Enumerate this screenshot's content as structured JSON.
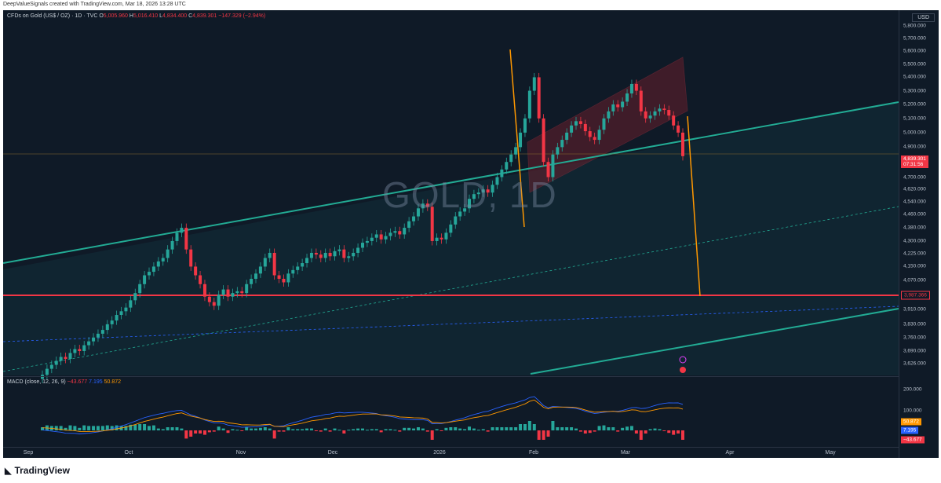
{
  "header": "DeepValueSignals created with TradingView.com, Mar 18, 2026 13:28 UTC",
  "symbol": {
    "name": "CFDs on Gold (US$ / OZ) · 1D · TVC",
    "o_label": "O",
    "o": "5,005.960",
    "h_label": "H",
    "h": "5,016.410",
    "l_label": "L",
    "l": "4,834.400",
    "c_label": "C",
    "c": "4,839.301",
    "change": "−147.329 (−2.94%)"
  },
  "watermark": "GOLD, 1D",
  "currency": "USD",
  "price_tag": {
    "value": "4,839.301",
    "countdown": "07:31:56"
  },
  "level_tag": "3,987.366",
  "macd": {
    "legend": "MACD (close, 12, 26, 9)",
    "histogram": "−43.677",
    "macd_line": "7.195",
    "signal": "50.872",
    "tags": {
      "signal": "50.872",
      "macd": "7.195",
      "hist": "−43.677"
    },
    "ticks": [
      "200.000",
      "100.000"
    ]
  },
  "footer": {
    "logo": "◣",
    "brand": "TradingView"
  },
  "colors": {
    "up": "#26a69a",
    "down": "#f23645",
    "trend": "#22ab94",
    "level": "#f23645",
    "projection": "#ff9800",
    "macd": "#2962ff",
    "signal": "#ff9800"
  },
  "chart_data": {
    "type": "candlestick",
    "title": "CFDs on Gold (US$ / OZ) · 1D · TVC",
    "y_ticks": [
      "5,800.000",
      "5,700.000",
      "5,600.000",
      "5,500.000",
      "5,400.000",
      "5,300.000",
      "5,200.000",
      "5,100.000",
      "5,000.000",
      "4,900.000",
      "4,700.000",
      "4,620.000",
      "4,540.000",
      "4,460.000",
      "4,380.000",
      "4,300.000",
      "4,225.000",
      "4,150.000",
      "4,070.000",
      "3,910.000",
      "3,830.000",
      "3,760.000",
      "3,690.000",
      "3,626.000"
    ],
    "x_ticks": [
      "Sep",
      "Oct",
      "Nov",
      "Dec",
      "2026",
      "Feb",
      "Mar",
      "Apr",
      "May"
    ],
    "log_scale": true,
    "ylim": [
      3590,
      5900
    ],
    "approx_daily_close": [
      3570,
      3600,
      3620,
      3640,
      3660,
      3650,
      3680,
      3700,
      3690,
      3720,
      3740,
      3760,
      3780,
      3800,
      3830,
      3850,
      3880,
      3900,
      3920,
      3960,
      4000,
      4050,
      4100,
      4120,
      4150,
      4180,
      4200,
      4250,
      4300,
      4350,
      4380,
      4250,
      4150,
      4100,
      4050,
      3980,
      3950,
      3930,
      3990,
      4020,
      3980,
      4000,
      4010,
      4000,
      4050,
      4080,
      4110,
      4150,
      4200,
      4230,
      4100,
      4080,
      4060,
      4110,
      4130,
      4150,
      4170,
      4200,
      4230,
      4220,
      4200,
      4230,
      4210,
      4240,
      4250,
      4200,
      4210,
      4230,
      4260,
      4290,
      4300,
      4320,
      4340,
      4310,
      4330,
      4350,
      4360,
      4340,
      4380,
      4420,
      4450,
      4500,
      4530,
      4510,
      4300,
      4320,
      4310,
      4350,
      4400,
      4450,
      4480,
      4500,
      4560,
      4590,
      4600,
      4620,
      4600,
      4650,
      4700,
      4750,
      4800,
      4850,
      4900,
      5000,
      5100,
      5300,
      5400,
      5100,
      4800,
      4700,
      4850,
      4900,
      4950,
      5000,
      5050,
      5080,
      5060,
      5010,
      4970,
      4950,
      5020,
      5100,
      5150,
      5200,
      5180,
      5220,
      5280,
      5350,
      5300,
      5150,
      5100,
      5120,
      5150,
      5170,
      5160,
      5120,
      5050,
      5000,
      4839
    ]
  }
}
